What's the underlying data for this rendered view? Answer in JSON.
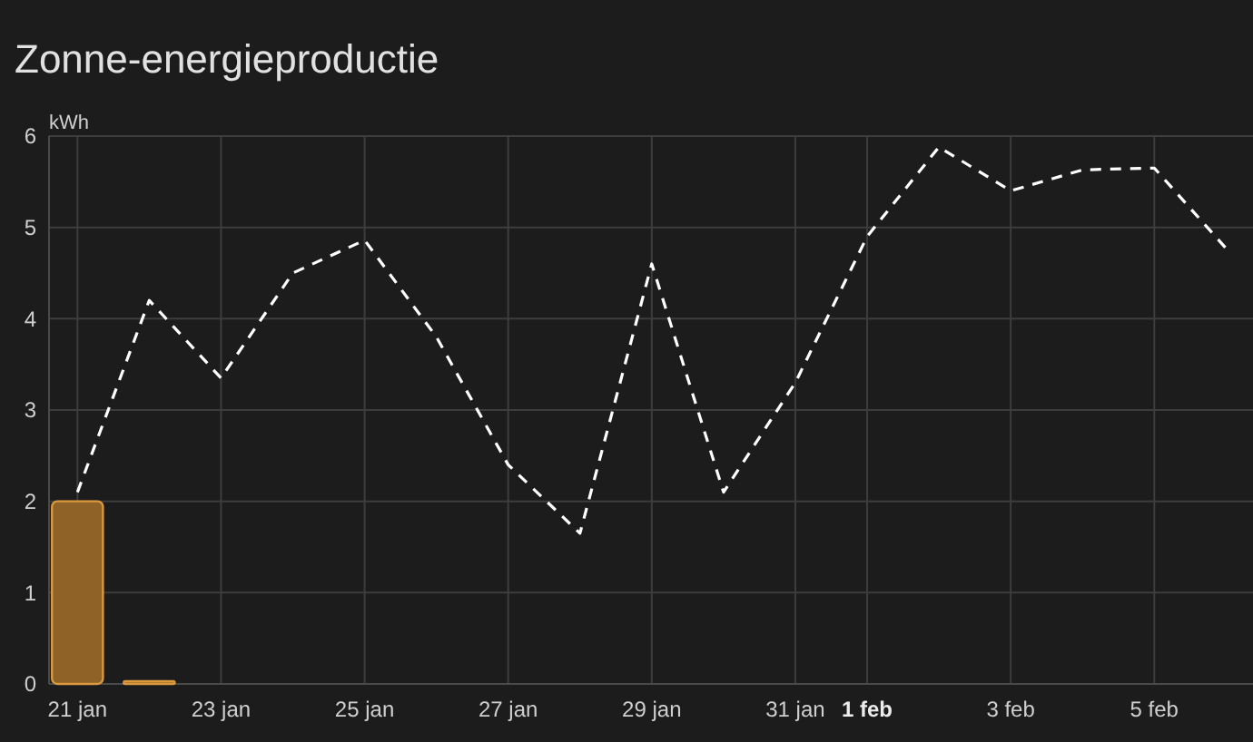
{
  "chart_data": {
    "type": "bar",
    "title": "Zonne-energieproductie",
    "ylabel": "kWh",
    "xlim": [
      "--01-20T14:30",
      "--02-06T09:00"
    ],
    "xticks": [
      {
        "value": "--01-21",
        "label": "21 jan"
      },
      {
        "value": "--01-23",
        "label": "23 jan"
      },
      {
        "value": "--01-25",
        "label": "25 jan"
      },
      {
        "value": "--01-27",
        "label": "27 jan"
      },
      {
        "value": "--01-29",
        "label": "29 jan"
      },
      {
        "value": "--01-31",
        "label": "31 jan"
      },
      {
        "value": "--02-01",
        "label": "1 feb"
      },
      {
        "value": "--02-03",
        "label": "3 feb"
      },
      {
        "value": "--02-05",
        "label": "5 feb"
      }
    ],
    "ylim": [
      0,
      6
    ],
    "yticks": [
      0,
      1,
      2,
      3,
      4,
      5,
      6
    ],
    "grid": true,
    "series": [
      {
        "color": "#8f6328",
        "x": [
          "--01-21",
          "--01-22"
        ],
        "values": [
          2.0,
          0.03
        ]
      },
      {
        "type": "line",
        "color": "#ffffff",
        "line_style": "dashed",
        "x": [
          "--01-21",
          "--01-22",
          "--01-23",
          "--01-24",
          "--01-25",
          "--01-26",
          "--01-27",
          "--01-28",
          "--01-29",
          "--01-30",
          "--01-31",
          "--02-01",
          "--02-02",
          "--02-03",
          "--02-04",
          "--02-05",
          "--02-06"
        ],
        "values": [
          2.1,
          4.2,
          3.35,
          4.5,
          4.86,
          3.8,
          2.4,
          1.65,
          4.6,
          2.1,
          3.3,
          4.9,
          5.88,
          5.4,
          5.63,
          5.65,
          4.77
        ]
      }
    ]
  }
}
